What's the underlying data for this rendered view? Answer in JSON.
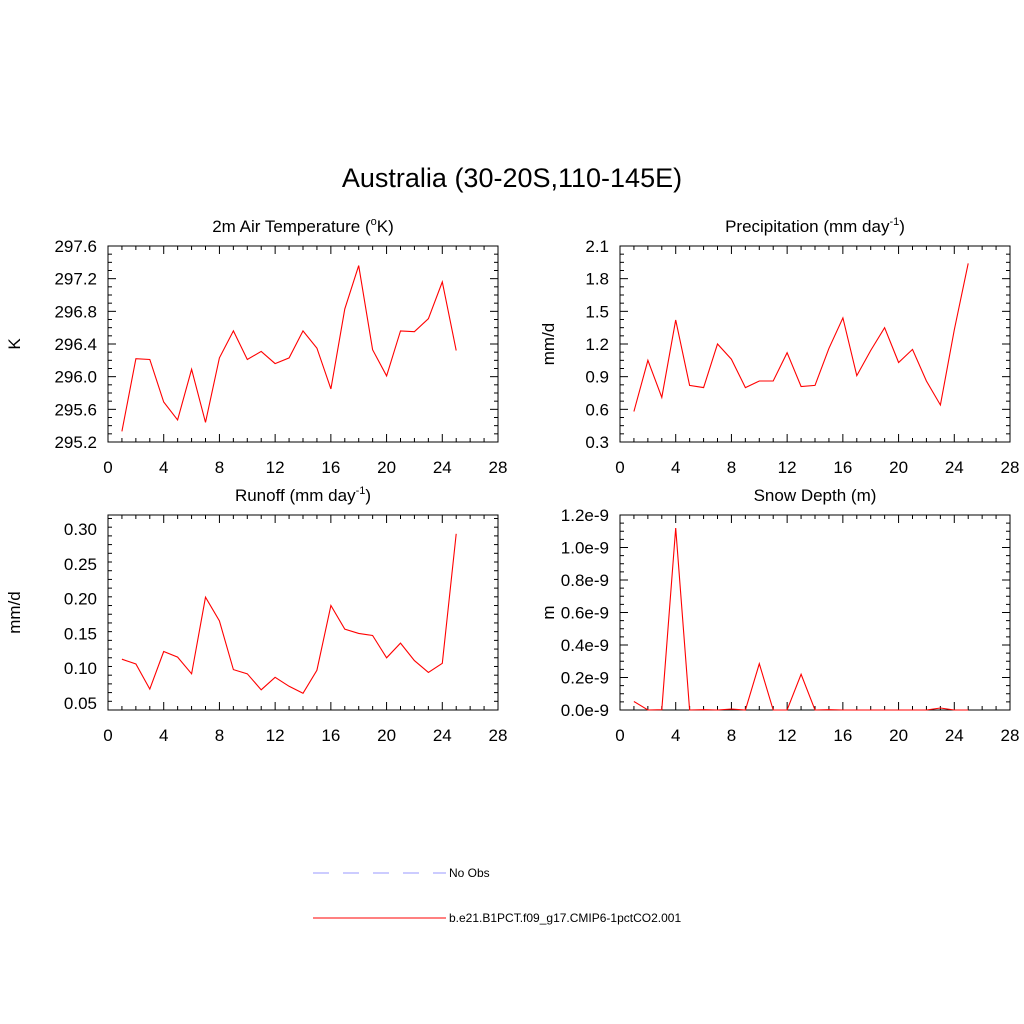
{
  "figure": {
    "title": "Australia (30-20S,110-145E)"
  },
  "legend": [
    {
      "label": "No Obs",
      "color": "#9999ff",
      "dash": "dashed"
    },
    {
      "label": "b.e21.B1PCT.f09_g17.CMIP6-1pctCO2.001",
      "color": "#ff0000",
      "dash": "solid"
    }
  ],
  "chart_data": [
    {
      "type": "line",
      "title": "2m Air Temperature (",
      "title_sup": "o",
      "title_tail": "K)",
      "ylabel": "K",
      "xlim": [
        0,
        28
      ],
      "xticks": [
        0,
        4,
        8,
        12,
        16,
        20,
        24,
        28
      ],
      "ylim": [
        295.2,
        297.6
      ],
      "yticks": [
        295.2,
        295.6,
        296.0,
        296.4,
        296.8,
        297.2,
        297.6
      ],
      "ytick_labels": [
        "295.2",
        "295.6",
        "296.0",
        "296.4",
        "296.8",
        "297.2",
        "297.6"
      ],
      "line_color": "#ff0000",
      "x": [
        1,
        2,
        3,
        4,
        5,
        6,
        7,
        8,
        9,
        10,
        11,
        12,
        13,
        14,
        15,
        16,
        17,
        18,
        19,
        20,
        21,
        22,
        23,
        24,
        25
      ],
      "y": [
        295.33,
        296.22,
        296.21,
        295.69,
        295.47,
        296.09,
        295.44,
        296.23,
        296.56,
        296.21,
        296.31,
        296.16,
        296.23,
        296.56,
        296.35,
        295.85,
        296.83,
        297.36,
        296.33,
        296.01,
        296.56,
        296.55,
        296.71,
        297.16,
        296.32
      ]
    },
    {
      "type": "line",
      "title": "Precipitation (mm day",
      "title_sup": "-1",
      "title_tail": ")",
      "ylabel": "mm/d",
      "xlim": [
        0,
        28
      ],
      "xticks": [
        0,
        4,
        8,
        12,
        16,
        20,
        24,
        28
      ],
      "ylim": [
        0.3,
        2.1
      ],
      "yticks": [
        0.3,
        0.6,
        0.9,
        1.2,
        1.5,
        1.8,
        2.1
      ],
      "ytick_labels": [
        "0.3",
        "0.6",
        "0.9",
        "1.2",
        "1.5",
        "1.8",
        "2.1"
      ],
      "line_color": "#ff0000",
      "x": [
        1,
        2,
        3,
        4,
        5,
        6,
        7,
        8,
        9,
        10,
        11,
        12,
        13,
        14,
        15,
        16,
        17,
        18,
        19,
        20,
        21,
        22,
        23,
        24,
        25
      ],
      "y": [
        0.58,
        1.05,
        0.71,
        1.42,
        0.82,
        0.8,
        1.2,
        1.06,
        0.8,
        0.86,
        0.86,
        1.12,
        0.81,
        0.82,
        1.16,
        1.44,
        0.91,
        1.14,
        1.35,
        1.03,
        1.15,
        0.86,
        0.64,
        1.33,
        1.94
      ]
    },
    {
      "type": "line",
      "title": "Runoff (mm day",
      "title_sup": "-1",
      "title_tail": ")",
      "ylabel": "mm/d",
      "xlim": [
        0,
        28
      ],
      "xticks": [
        0,
        4,
        8,
        12,
        16,
        20,
        24,
        28
      ],
      "ylim": [
        0.04,
        0.32
      ],
      "yticks": [
        0.05,
        0.1,
        0.15,
        0.2,
        0.25,
        0.3
      ],
      "ytick_labels": [
        "0.05",
        "0.10",
        "0.15",
        "0.20",
        "0.25",
        "0.30"
      ],
      "line_color": "#ff0000",
      "x": [
        1,
        2,
        3,
        4,
        5,
        6,
        7,
        8,
        9,
        10,
        11,
        12,
        13,
        14,
        15,
        16,
        17,
        18,
        19,
        20,
        21,
        22,
        23,
        24,
        25
      ],
      "y": [
        0.113,
        0.106,
        0.07,
        0.124,
        0.116,
        0.092,
        0.202,
        0.168,
        0.098,
        0.092,
        0.069,
        0.087,
        0.074,
        0.064,
        0.097,
        0.19,
        0.156,
        0.15,
        0.147,
        0.115,
        0.136,
        0.111,
        0.094,
        0.107,
        0.293
      ]
    },
    {
      "type": "line",
      "title": "Snow Depth (m)",
      "title_sup": "",
      "title_tail": "",
      "ylabel": "m",
      "xlim": [
        0,
        28
      ],
      "xticks": [
        0,
        4,
        8,
        12,
        16,
        20,
        24,
        28
      ],
      "ylim": [
        0,
        1.2e-09
      ],
      "yticks": [
        0,
        2e-10,
        4e-10,
        6e-10,
        8e-10,
        1e-09,
        1.2e-09
      ],
      "ytick_labels": [
        "0.0e-9",
        "0.2e-9",
        "0.4e-9",
        "0.6e-9",
        "0.8e-9",
        "1.0e-9",
        "1.2e-9"
      ],
      "line_color": "#ff0000",
      "x": [
        1,
        2,
        3,
        4,
        5,
        6,
        7,
        8,
        9,
        10,
        11,
        12,
        13,
        14,
        15,
        16,
        17,
        18,
        19,
        20,
        21,
        22,
        23,
        24,
        25
      ],
      "y": [
        5.2e-11,
        0,
        2e-12,
        1.12e-09,
        0,
        2e-12,
        0,
        6e-12,
        0,
        2.85e-10,
        0,
        0,
        2.2e-10,
        0,
        2e-12,
        0,
        0,
        0,
        0,
        0,
        0,
        0,
        1.2e-11,
        0,
        0
      ]
    }
  ]
}
